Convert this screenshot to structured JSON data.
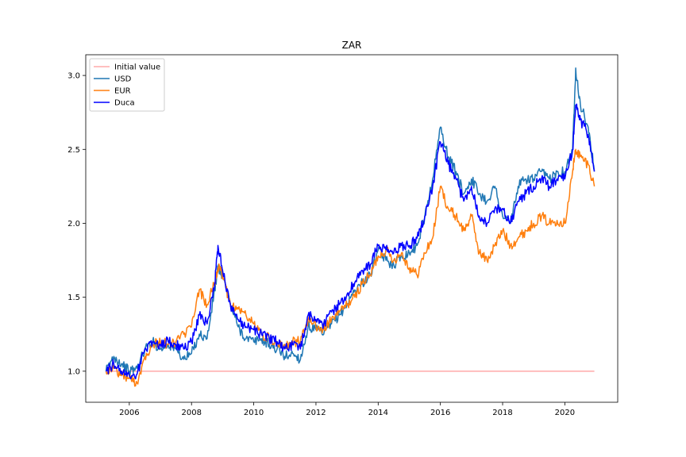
{
  "chart_data": {
    "type": "line",
    "title": "ZAR",
    "xlabel": "",
    "ylabel": "",
    "xlim": [
      2004.6,
      2021.7
    ],
    "ylim": [
      0.79,
      3.14
    ],
    "x_ticks": [
      2006,
      2008,
      2010,
      2012,
      2014,
      2016,
      2018,
      2020
    ],
    "x_tick_labels": [
      "2006",
      "2008",
      "2010",
      "2012",
      "2014",
      "2016",
      "2018",
      "2020"
    ],
    "y_ticks": [
      1.0,
      1.5,
      2.0,
      2.5,
      3.0
    ],
    "y_tick_labels": [
      "1.0",
      "1.5",
      "2.0",
      "2.5",
      "3.0"
    ],
    "grid": false,
    "legend_position": "top-left",
    "series": [
      {
        "name": "Initial value",
        "color": "#ffaaaa",
        "x": [
          2005.25,
          2020.95
        ],
        "values": [
          1.0,
          1.0
        ]
      },
      {
        "name": "USD",
        "color": "#1f77b4",
        "x": [
          2005.25,
          2005.5,
          2005.75,
          2006.0,
          2006.25,
          2006.5,
          2006.75,
          2007.0,
          2007.25,
          2007.5,
          2007.75,
          2008.0,
          2008.25,
          2008.5,
          2008.75,
          2008.85,
          2009.0,
          2009.25,
          2009.5,
          2009.75,
          2010.0,
          2010.25,
          2010.5,
          2010.75,
          2011.0,
          2011.25,
          2011.5,
          2011.75,
          2012.0,
          2012.25,
          2012.5,
          2012.75,
          2013.0,
          2013.25,
          2013.5,
          2013.75,
          2014.0,
          2014.25,
          2014.5,
          2014.75,
          2015.0,
          2015.25,
          2015.5,
          2015.75,
          2016.0,
          2016.25,
          2016.5,
          2016.75,
          2017.0,
          2017.25,
          2017.5,
          2017.75,
          2018.0,
          2018.25,
          2018.5,
          2018.75,
          2019.0,
          2019.25,
          2019.5,
          2019.75,
          2020.0,
          2020.25,
          2020.35,
          2020.5,
          2020.75,
          2020.95
        ],
        "values": [
          1.0,
          1.1,
          1.05,
          1.0,
          1.02,
          1.15,
          1.2,
          1.15,
          1.18,
          1.15,
          1.08,
          1.12,
          1.25,
          1.22,
          1.55,
          1.7,
          1.65,
          1.45,
          1.3,
          1.22,
          1.2,
          1.22,
          1.18,
          1.15,
          1.1,
          1.12,
          1.08,
          1.3,
          1.28,
          1.25,
          1.32,
          1.38,
          1.45,
          1.55,
          1.6,
          1.65,
          1.82,
          1.75,
          1.72,
          1.78,
          1.8,
          1.85,
          2.05,
          2.3,
          2.65,
          2.45,
          2.35,
          2.2,
          2.3,
          2.2,
          2.15,
          2.25,
          2.05,
          2.0,
          2.25,
          2.3,
          2.3,
          2.35,
          2.3,
          2.35,
          2.35,
          2.5,
          3.05,
          2.8,
          2.65,
          2.35
        ]
      },
      {
        "name": "EUR",
        "color": "#ff7f0e",
        "x": [
          2005.25,
          2005.5,
          2005.75,
          2006.0,
          2006.25,
          2006.5,
          2006.75,
          2007.0,
          2007.25,
          2007.5,
          2007.75,
          2008.0,
          2008.25,
          2008.5,
          2008.75,
          2008.85,
          2009.0,
          2009.25,
          2009.5,
          2009.75,
          2010.0,
          2010.25,
          2010.5,
          2010.75,
          2011.0,
          2011.25,
          2011.5,
          2011.75,
          2012.0,
          2012.25,
          2012.5,
          2012.75,
          2013.0,
          2013.25,
          2013.5,
          2013.75,
          2014.0,
          2014.25,
          2014.5,
          2014.75,
          2015.0,
          2015.25,
          2015.5,
          2015.75,
          2016.0,
          2016.25,
          2016.5,
          2016.75,
          2017.0,
          2017.25,
          2017.5,
          2017.75,
          2018.0,
          2018.25,
          2018.5,
          2018.75,
          2019.0,
          2019.25,
          2019.5,
          2019.75,
          2020.0,
          2020.25,
          2020.35,
          2020.5,
          2020.75,
          2020.95
        ],
        "values": [
          1.0,
          1.02,
          0.97,
          0.95,
          0.92,
          1.1,
          1.18,
          1.2,
          1.18,
          1.2,
          1.25,
          1.3,
          1.55,
          1.45,
          1.6,
          1.7,
          1.65,
          1.45,
          1.42,
          1.38,
          1.32,
          1.25,
          1.22,
          1.2,
          1.18,
          1.2,
          1.2,
          1.35,
          1.3,
          1.28,
          1.35,
          1.4,
          1.45,
          1.5,
          1.6,
          1.65,
          1.78,
          1.82,
          1.75,
          1.8,
          1.7,
          1.65,
          1.8,
          1.9,
          2.25,
          2.1,
          2.05,
          1.95,
          2.05,
          1.8,
          1.75,
          1.85,
          1.95,
          1.85,
          1.9,
          1.95,
          2.0,
          2.05,
          2.0,
          2.02,
          2.0,
          2.35,
          2.5,
          2.45,
          2.4,
          2.25
        ]
      },
      {
        "name": "Duca",
        "color": "#0000ff",
        "x": [
          2005.25,
          2005.5,
          2005.75,
          2006.0,
          2006.25,
          2006.5,
          2006.75,
          2007.0,
          2007.25,
          2007.5,
          2007.75,
          2008.0,
          2008.25,
          2008.5,
          2008.75,
          2008.85,
          2009.0,
          2009.25,
          2009.5,
          2009.75,
          2010.0,
          2010.25,
          2010.5,
          2010.75,
          2011.0,
          2011.25,
          2011.5,
          2011.75,
          2012.0,
          2012.25,
          2012.5,
          2012.75,
          2013.0,
          2013.25,
          2013.5,
          2013.75,
          2014.0,
          2014.25,
          2014.5,
          2014.75,
          2015.0,
          2015.25,
          2015.5,
          2015.75,
          2016.0,
          2016.25,
          2016.5,
          2016.75,
          2017.0,
          2017.25,
          2017.5,
          2017.75,
          2018.0,
          2018.25,
          2018.5,
          2018.75,
          2019.0,
          2019.25,
          2019.5,
          2019.75,
          2020.0,
          2020.25,
          2020.35,
          2020.5,
          2020.75,
          2020.95
        ],
        "values": [
          1.0,
          1.05,
          1.0,
          0.97,
          0.98,
          1.15,
          1.2,
          1.18,
          1.2,
          1.18,
          1.15,
          1.2,
          1.38,
          1.32,
          1.6,
          1.85,
          1.68,
          1.45,
          1.35,
          1.3,
          1.28,
          1.25,
          1.22,
          1.2,
          1.15,
          1.18,
          1.15,
          1.38,
          1.35,
          1.32,
          1.4,
          1.45,
          1.52,
          1.6,
          1.68,
          1.72,
          1.85,
          1.82,
          1.8,
          1.85,
          1.85,
          1.9,
          2.05,
          2.25,
          2.55,
          2.4,
          2.3,
          2.15,
          2.25,
          2.05,
          2.0,
          2.1,
          2.1,
          2.0,
          2.15,
          2.2,
          2.25,
          2.3,
          2.25,
          2.3,
          2.3,
          2.5,
          2.8,
          2.7,
          2.6,
          2.35
        ]
      }
    ]
  }
}
